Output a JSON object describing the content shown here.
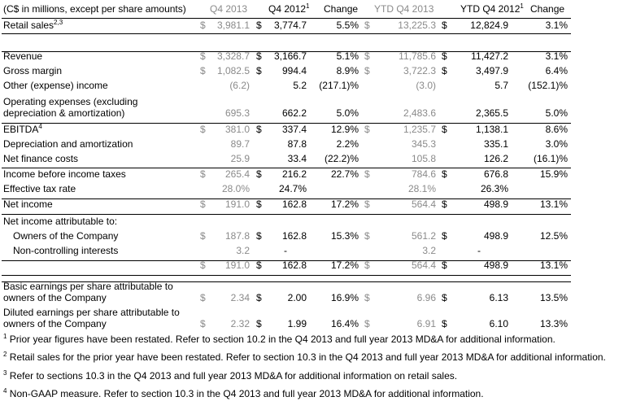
{
  "header": {
    "title": "(C$ in millions, except per share amounts)",
    "q4_2013": "Q4 2013",
    "q4_2012": "Q4 2012",
    "q4_2012_sup": "1",
    "change": "Change",
    "ytd_2013": "YTD Q4 2013",
    "ytd_2012": "YTD Q4 2012",
    "ytd_2012_sup": "1",
    "change2": "Change"
  },
  "rows": [
    {
      "label": "Retail sales",
      "sup": "2,3",
      "s1": "$",
      "q13": "3,981.1",
      "s2": "$",
      "q12": "3,774.7",
      "chg": "5.5%",
      "s3": "$",
      "y13": "13,225.3",
      "s4": "$",
      "y12": "12,824.9",
      "chg2": "3.1%"
    },
    {
      "label": "Revenue",
      "sup": "",
      "s1": "$",
      "q13": "3,328.7",
      "s2": "$",
      "q12": "3,166.7",
      "chg": "5.1%",
      "s3": "$",
      "y13": "11,785.6",
      "s4": "$",
      "y12": "11,427.2",
      "chg2": "3.1%"
    },
    {
      "label": "Gross margin",
      "sup": "",
      "s1": "$",
      "q13": "1,082.5",
      "s2": "$",
      "q12": "994.4",
      "chg": "8.9%",
      "s3": "$",
      "y13": "3,722.3",
      "s4": "$",
      "y12": "3,497.9",
      "chg2": "6.4%"
    },
    {
      "label": "Other (expense) income",
      "sup": "",
      "s1": "",
      "q13": "(6.2)",
      "s2": "",
      "q12": "5.2",
      "chg": "(217.1)%",
      "s3": "",
      "y13": "(3.0)",
      "s4": "",
      "y12": "5.7",
      "chg2": "(152.1)%"
    },
    {
      "label": "Operating expenses (excluding",
      "label2": "depreciation & amortization)",
      "sup": "",
      "s1": "",
      "q13": "695.3",
      "s2": "",
      "q12": "662.2",
      "chg": "5.0%",
      "s3": "",
      "y13": "2,483.6",
      "s4": "",
      "y12": "2,365.5",
      "chg2": "5.0%"
    },
    {
      "label": "EBITDA",
      "sup": "4",
      "s1": "$",
      "q13": "381.0",
      "s2": "$",
      "q12": "337.4",
      "chg": "12.9%",
      "s3": "$",
      "y13": "1,235.7",
      "s4": "$",
      "y12": "1,138.1",
      "chg2": "8.6%"
    },
    {
      "label": "Depreciation and amortization",
      "sup": "",
      "s1": "",
      "q13": "89.7",
      "s2": "",
      "q12": "87.8",
      "chg": "2.2%",
      "s3": "",
      "y13": "345.3",
      "s4": "",
      "y12": "335.1",
      "chg2": "3.0%"
    },
    {
      "label": "Net finance costs",
      "sup": "",
      "s1": "",
      "q13": "25.9",
      "s2": "",
      "q12": "33.4",
      "chg": "(22.2)%",
      "s3": "",
      "y13": "105.8",
      "s4": "",
      "y12": "126.2",
      "chg2": "(16.1)%"
    },
    {
      "label": "Income before income taxes",
      "sup": "",
      "s1": "$",
      "q13": "265.4",
      "s2": "$",
      "q12": "216.2",
      "chg": "22.7%",
      "s3": "$",
      "y13": "784.6",
      "s4": "$",
      "y12": "676.8",
      "chg2": "15.9%"
    },
    {
      "label": "Effective tax rate",
      "sup": "",
      "s1": "",
      "q13": "28.0%",
      "s2": "",
      "q12": "24.7%",
      "chg": "",
      "s3": "",
      "y13": "28.1%",
      "s4": "",
      "y12": "26.3%",
      "chg2": ""
    },
    {
      "label": "Net income",
      "sup": "",
      "s1": "$",
      "q13": "191.0",
      "s2": "$",
      "q12": "162.8",
      "chg": "17.2%",
      "s3": "$",
      "y13": "564.4",
      "s4": "$",
      "y12": "498.9",
      "chg2": "13.1%"
    },
    {
      "label": "Net income attributable to:",
      "sup": "",
      "s1": "",
      "q13": "",
      "s2": "",
      "q12": "",
      "chg": "",
      "s3": "",
      "y13": "",
      "s4": "",
      "y12": "",
      "chg2": ""
    },
    {
      "label": "Owners of the Company",
      "sup": "",
      "s1": "$",
      "q13": "187.8",
      "s2": "$",
      "q12": "162.8",
      "chg": "15.3%",
      "s3": "$",
      "y13": "561.2",
      "s4": "$",
      "y12": "498.9",
      "chg2": "12.5%"
    },
    {
      "label": "Non-controlling interests",
      "sup": "",
      "s1": "",
      "q13": "3.2",
      "s2": "",
      "q12": "-",
      "chg": "",
      "s3": "",
      "y13": "3.2",
      "s4": "",
      "y12": "-",
      "chg2": ""
    },
    {
      "label": "",
      "sup": "",
      "s1": "$",
      "q13": "191.0",
      "s2": "$",
      "q12": "162.8",
      "chg": "17.2%",
      "s3": "$",
      "y13": "564.4",
      "s4": "$",
      "y12": "498.9",
      "chg2": "13.1%"
    },
    {
      "label": "Basic earnings per share attributable to",
      "label2": "owners of the Company",
      "sup": "",
      "s1": "$",
      "q13": "2.34",
      "s2": "$",
      "q12": "2.00",
      "chg": "16.9%",
      "s3": "$",
      "y13": "6.96",
      "s4": "$",
      "y12": "6.13",
      "chg2": "13.5%"
    },
    {
      "label": "Diluted earnings per share attributable to",
      "label2": "owners of the Company",
      "sup": "",
      "s1": "$",
      "q13": "2.32",
      "s2": "$",
      "q12": "1.99",
      "chg": "16.4%",
      "s3": "$",
      "y13": "6.91",
      "s4": "$",
      "y12": "6.10",
      "chg2": "13.3%"
    }
  ],
  "footnotes": [
    {
      "num": "1",
      "text": "Prior year figures have been restated.  Refer to section 10.2 in the Q4 2013 and full year 2013 MD&A for additional information."
    },
    {
      "num": "2",
      "text": "Retail sales for the prior year have been restated. Refer to section 10.3 in the Q4 2013 and full year 2013 MD&A for additional information."
    },
    {
      "num": "3",
      "text": "Refer to sections 10.3 in the Q4 2013 and full year 2013 MD&A for additional information on retail sales."
    },
    {
      "num": "4",
      "text": "Non-GAAP measure. Refer to section 10.3 in the Q4 2013 and full year 2013 MD&A for additional information."
    }
  ]
}
